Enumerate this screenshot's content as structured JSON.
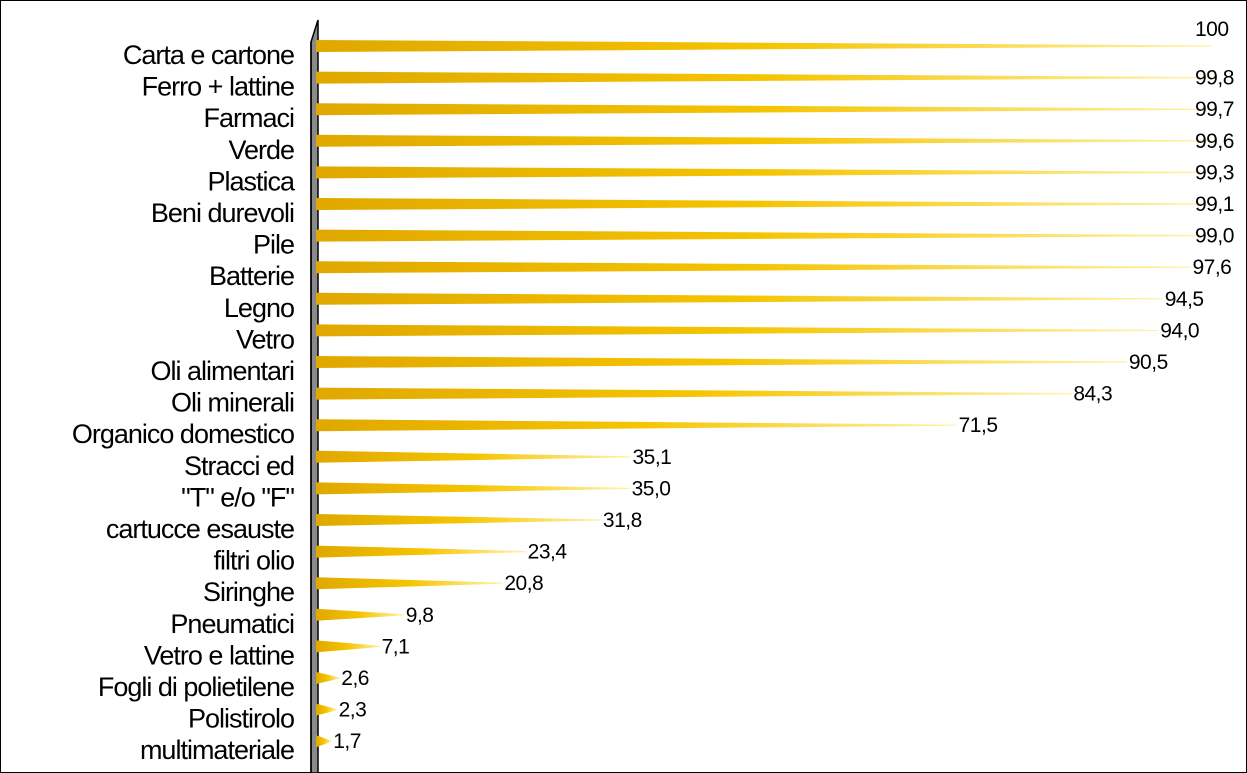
{
  "chart_data": {
    "type": "bar",
    "orientation": "horizontal",
    "title": "",
    "xlabel": "",
    "ylabel": "",
    "xlim": [
      0,
      100
    ],
    "grid": false,
    "legend": "none",
    "bar_color": "#F5C400",
    "categories": [
      "Carta e cartone",
      "Ferro + lattine",
      "Farmaci",
      "Verde",
      "Plastica",
      "Beni durevoli",
      "Pile",
      "Batterie",
      "Legno",
      "Vetro",
      "Oli alimentari",
      "Oli minerali",
      "Organico domestico",
      "Stracci ed",
      "\"T\" e/o \"F\"",
      "cartucce esauste",
      "filtri olio",
      "Siringhe",
      "Pneumatici",
      "Vetro e lattine",
      "Fogli di polietilene",
      "Polistirolo",
      "multimateriale"
    ],
    "values": [
      100,
      99.8,
      99.7,
      99.6,
      99.3,
      99.1,
      99.0,
      97.6,
      94.5,
      94.0,
      90.5,
      84.3,
      71.5,
      35.1,
      35.0,
      31.8,
      23.4,
      20.8,
      9.8,
      7.1,
      2.6,
      2.3,
      1.7
    ],
    "value_labels": [
      "100",
      "99,8",
      "99,7",
      "99,6",
      "99,3",
      "99,1",
      "99,0",
      "97,6",
      "94,5",
      "94,0",
      "90,5",
      "84,3",
      "71,5",
      "35,1",
      "35,0",
      "31,8",
      "23,4",
      "20,8",
      "9,8",
      "7,1",
      "2,6",
      "2,3",
      "1,7"
    ]
  }
}
